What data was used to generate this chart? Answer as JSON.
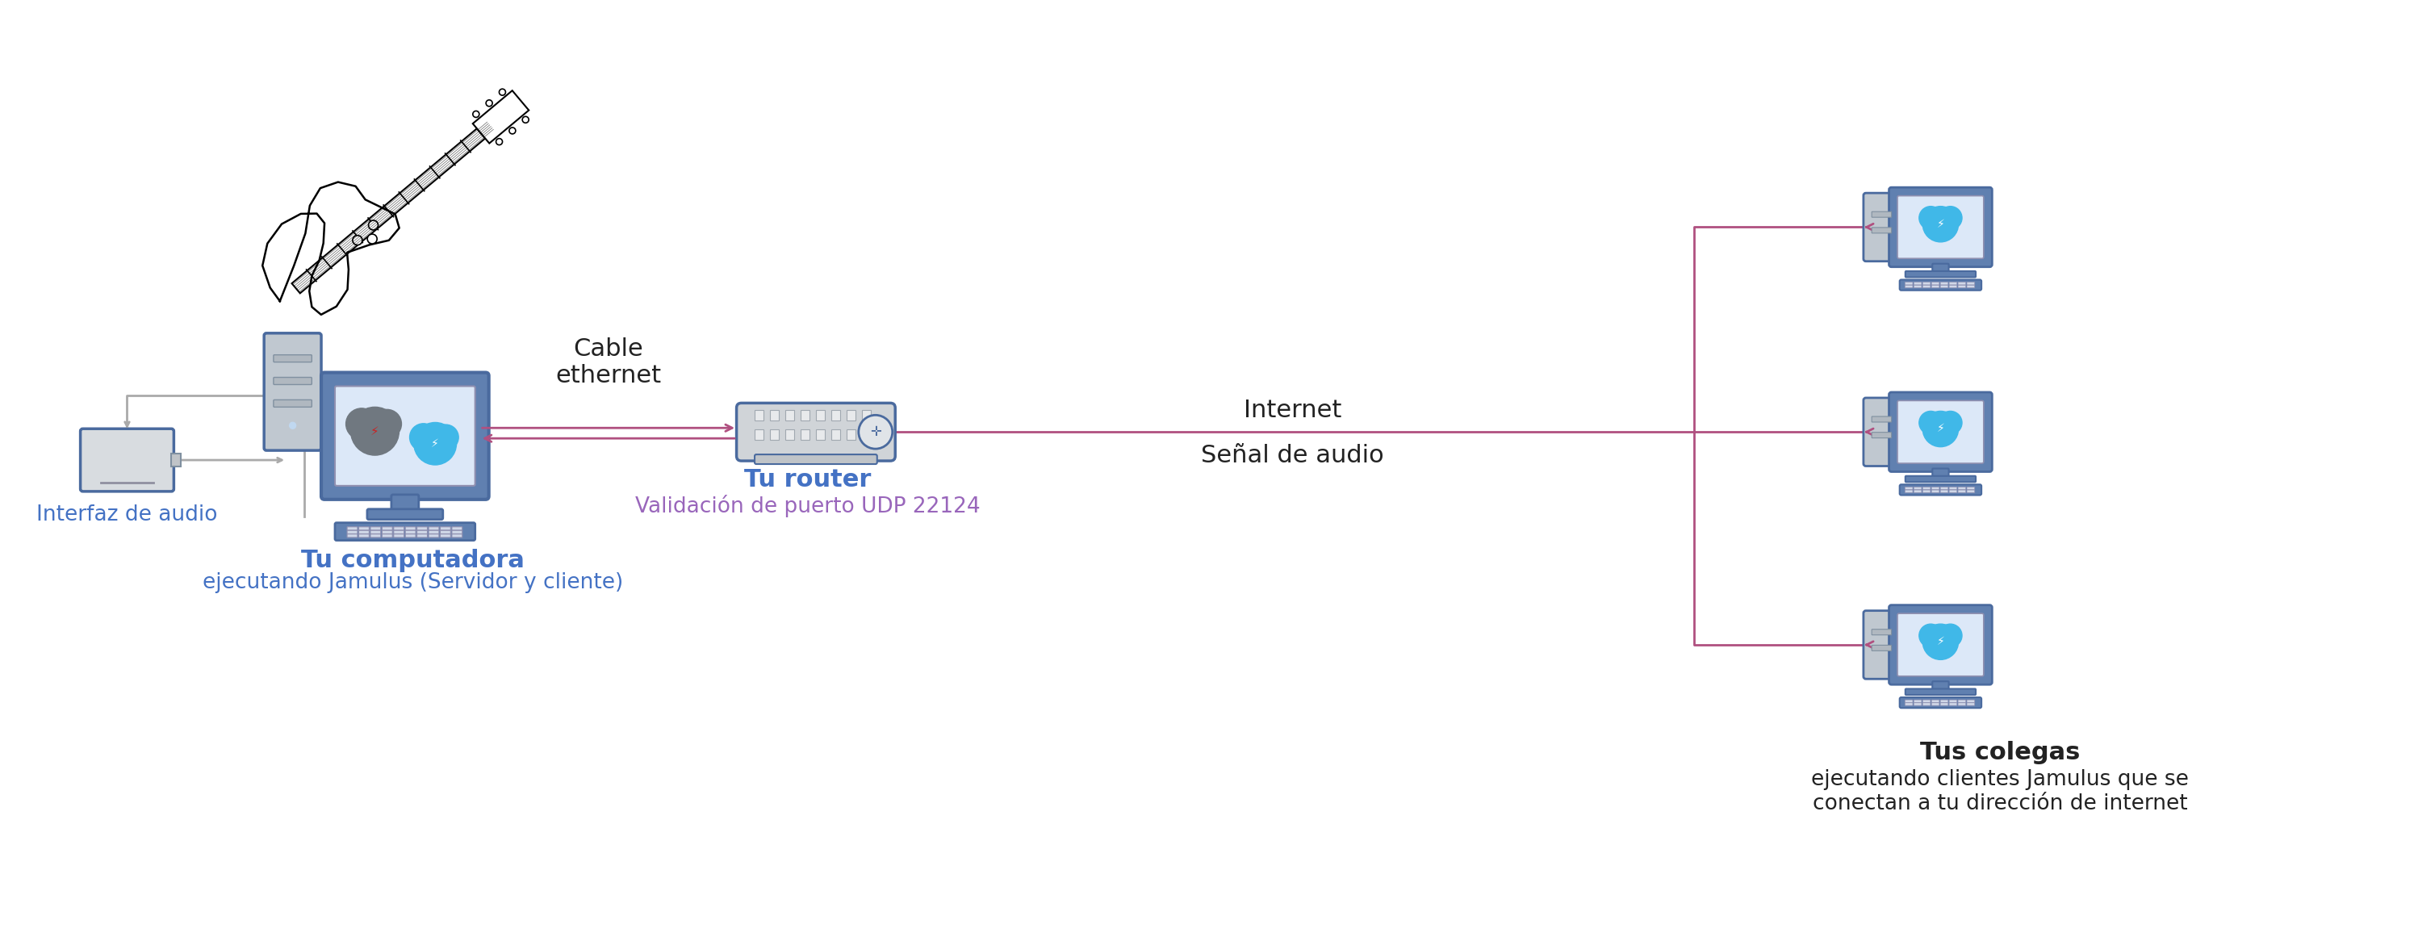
{
  "bg_color": "#ffffff",
  "arrow_color": "#b05080",
  "gray_line_color": "#aaaaaa",
  "blue_label_color": "#4472c4",
  "purple_label_color": "#9966bb",
  "black_color": "#222222",
  "device_blue": "#6080b0",
  "device_blue_edge": "#4a6a9e",
  "device_gray": "#c0c8d0",
  "device_gray_edge": "#8090a0",
  "screen_bg": "#dce8f8",
  "labels": {
    "audio_interface": "Interfaz de audio",
    "your_computer_line1": "Tu computadora",
    "your_computer_line2": "ejecutando Jamulus (Servidor y cliente)",
    "cable_ethernet": "Cable\nethernet",
    "your_router": "Tu router",
    "port_validation": "Validación de puerto UDP 22124",
    "internet": "Internet",
    "audio_signal": "Señal de audio",
    "colleagues_bold": "Tus colegas",
    "colleagues_normal": "ejecutando clientes Jamulus que se\nconectan a tu dirección de internet"
  }
}
